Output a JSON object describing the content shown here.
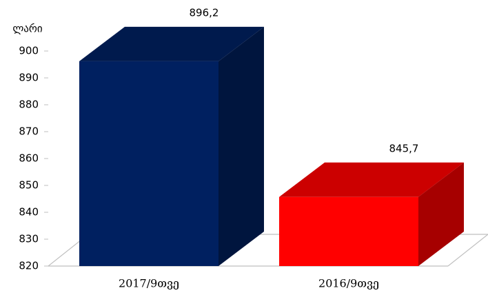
{
  "chart_data": {
    "type": "bar3d",
    "y_label": "ლარი",
    "categories": [
      "2017/9თვე",
      "2016/9თვე"
    ],
    "values": [
      896.2,
      845.7
    ],
    "value_labels": [
      "896,2",
      "845,7"
    ],
    "colors": [
      "#002060",
      "#ff0000"
    ],
    "ylim": [
      820,
      900
    ],
    "yticks": [
      820,
      830,
      840,
      850,
      860,
      870,
      880,
      890,
      900
    ]
  }
}
